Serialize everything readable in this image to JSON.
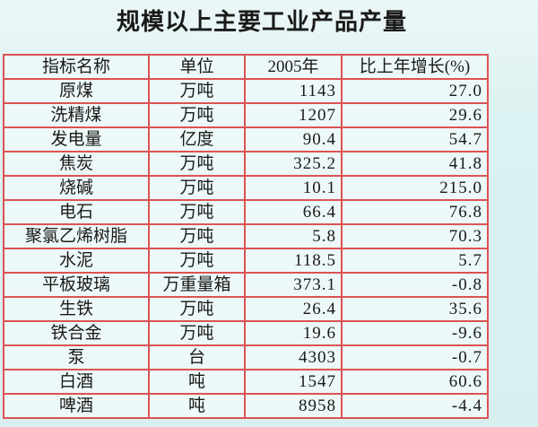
{
  "title": "规模以上主要工业产品产量",
  "colors": {
    "page_background": "#ddf1f1",
    "cell_background": "#edf8f8",
    "table_border": "#dc5353",
    "text": "#1a1a1a"
  },
  "table": {
    "columns": [
      "指标名称",
      "单位",
      "2005年",
      "比上年增长(%)"
    ],
    "rows": [
      {
        "name": "原煤",
        "unit": "万吨",
        "value": "1143",
        "growth": "27.0"
      },
      {
        "name": "洗精煤",
        "unit": "万吨",
        "value": "1207",
        "growth": "29.6"
      },
      {
        "name": "发电量",
        "unit": "亿度",
        "value": "90.4",
        "growth": "54.7"
      },
      {
        "name": "焦炭",
        "unit": "万吨",
        "value": "325.2",
        "growth": "41.8"
      },
      {
        "name": "烧碱",
        "unit": "万吨",
        "value": "10.1",
        "growth": "215.0"
      },
      {
        "name": "电石",
        "unit": "万吨",
        "value": "66.4",
        "growth": "76.8"
      },
      {
        "name": "聚氯乙烯树脂",
        "unit": "万吨",
        "value": "5.8",
        "growth": "70.3"
      },
      {
        "name": "水泥",
        "unit": "万吨",
        "value": "118.5",
        "growth": "5.7"
      },
      {
        "name": "平板玻璃",
        "unit": "万重量箱",
        "value": "373.1",
        "growth": "-0.8"
      },
      {
        "name": "生铁",
        "unit": "万吨",
        "value": "26.4",
        "growth": "35.6"
      },
      {
        "name": "铁合金",
        "unit": "万吨",
        "value": "19.6",
        "growth": "-9.6"
      },
      {
        "name": "泵",
        "unit": "台",
        "value": "4303",
        "growth": "-0.7"
      },
      {
        "name": "白酒",
        "unit": "吨",
        "value": "1547",
        "growth": "60.6"
      },
      {
        "name": "啤酒",
        "unit": "吨",
        "value": "8958",
        "growth": "-4.4"
      }
    ]
  }
}
